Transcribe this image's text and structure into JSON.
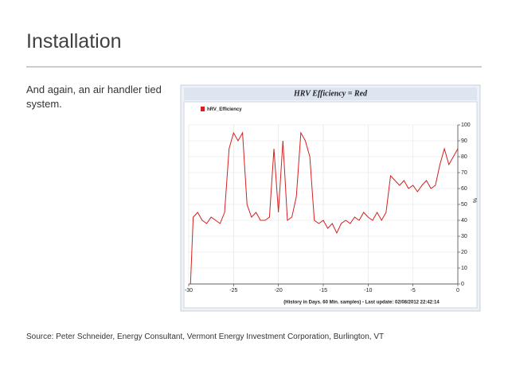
{
  "slide": {
    "title": "Installation",
    "body": "And again, an air handler tied system.",
    "source": "Source: Peter Schneider, Energy Consultant, Vermont Energy Investment Corporation, Burlington, VT"
  },
  "chart_data": {
    "type": "line",
    "title": "HRV Efficiency = Red",
    "x_label": "(History in Days. 60 Min. samples) - Last update: 02/08/2012 22:42:14",
    "y_label": "%",
    "x": [
      -29.8,
      -29.5,
      -29,
      -28.5,
      -28,
      -27.5,
      -27,
      -26.5,
      -26,
      -25.5,
      -25,
      -24.5,
      -24,
      -23.5,
      -23,
      -22.5,
      -22,
      -21.5,
      -21,
      -20.5,
      -20,
      -19.5,
      -19,
      -18.5,
      -18,
      -17.5,
      -17,
      -16.5,
      -16,
      -15.5,
      -15,
      -14.5,
      -14,
      -13.5,
      -13,
      -12.5,
      -12,
      -11.5,
      -11,
      -10.5,
      -10,
      -9.5,
      -9,
      -8.5,
      -8,
      -7.5,
      -7,
      -6.5,
      -6,
      -5.5,
      -5,
      -4.5,
      -4,
      -3.5,
      -3,
      -2.5,
      -2,
      -1.5,
      -1,
      -0.5,
      0
    ],
    "series": [
      {
        "name": "hRV_Efficiency",
        "color": "#d42020",
        "values": [
          0,
          42,
          45,
          40,
          38,
          42,
          40,
          38,
          45,
          85,
          95,
          90,
          95,
          50,
          42,
          45,
          40,
          40,
          42,
          85,
          45,
          90,
          40,
          42,
          55,
          95,
          90,
          80,
          40,
          38,
          40,
          35,
          38,
          32,
          38,
          40,
          38,
          42,
          40,
          45,
          42,
          40,
          45,
          40,
          45,
          68,
          65,
          62,
          65,
          60,
          62,
          58,
          62,
          65,
          60,
          62,
          75,
          85,
          75,
          80,
          85
        ]
      }
    ],
    "xlim": [
      -30,
      0
    ],
    "ylim": [
      0,
      100
    ],
    "xticks": [
      -30,
      -25,
      -20,
      -15,
      -10,
      -5,
      0
    ],
    "yticks": [
      0,
      10,
      20,
      30,
      40,
      50,
      60,
      70,
      80,
      90,
      100
    ],
    "grid": true
  }
}
